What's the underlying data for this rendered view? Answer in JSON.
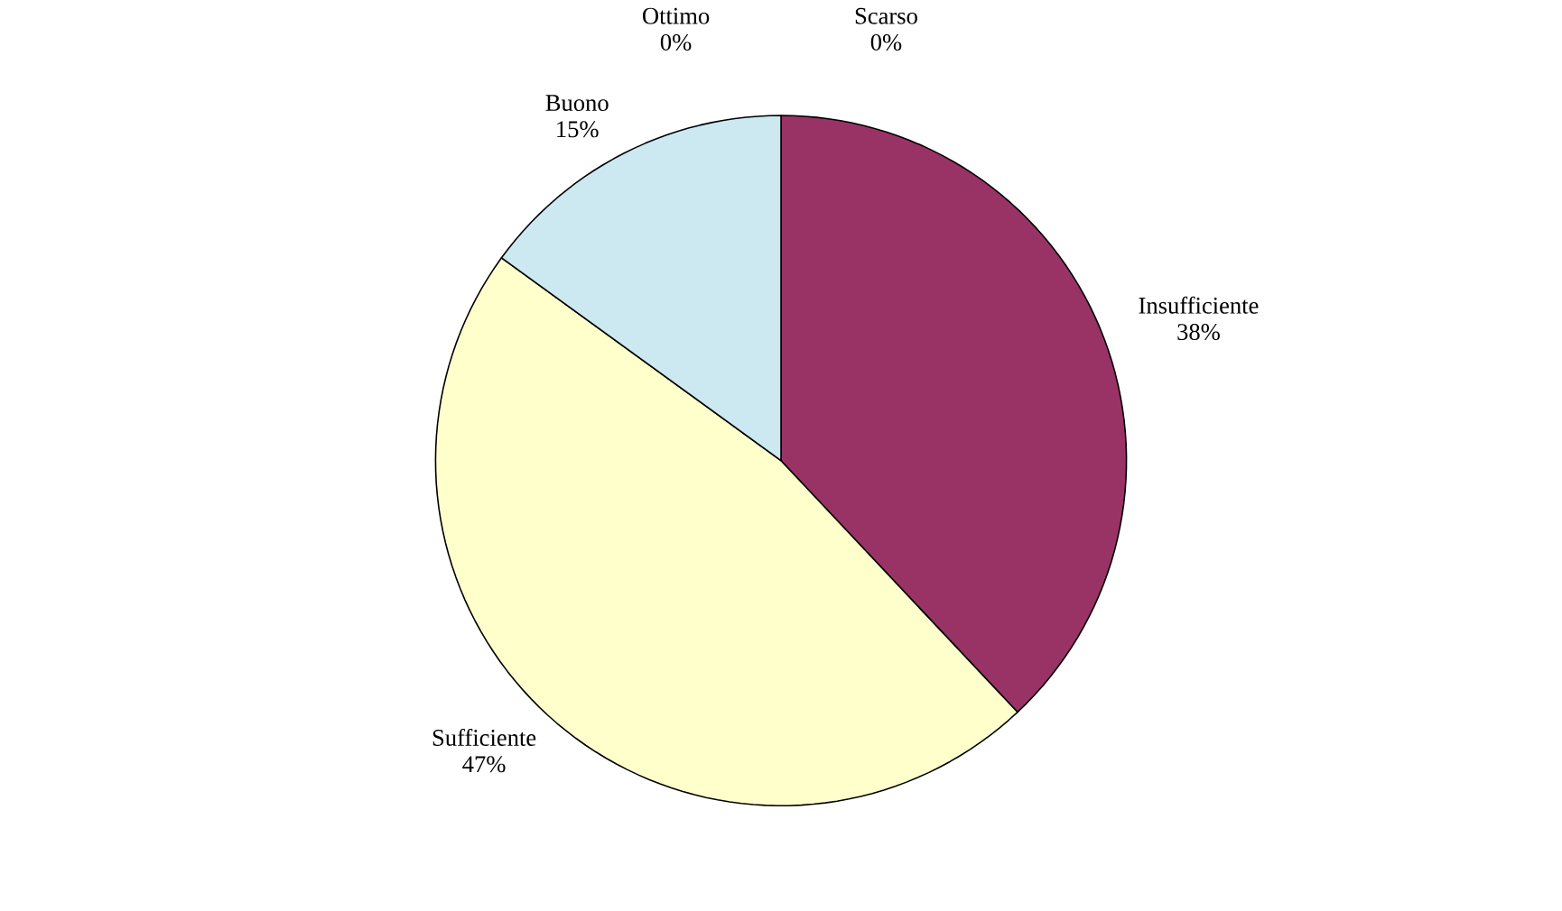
{
  "chart_data": {
    "type": "pie",
    "categories": [
      "Scarso",
      "Insufficiente",
      "Sufficiente",
      "Buono",
      "Ottimo"
    ],
    "values": [
      0,
      38,
      47,
      15,
      0
    ],
    "value_labels": [
      "0%",
      "38%",
      "47%",
      "15%",
      "0%"
    ],
    "colors": [
      "#5a5a8a",
      "#993366",
      "#ffffcc",
      "#cce8f0",
      "#8fa0c0"
    ],
    "legend": false
  }
}
